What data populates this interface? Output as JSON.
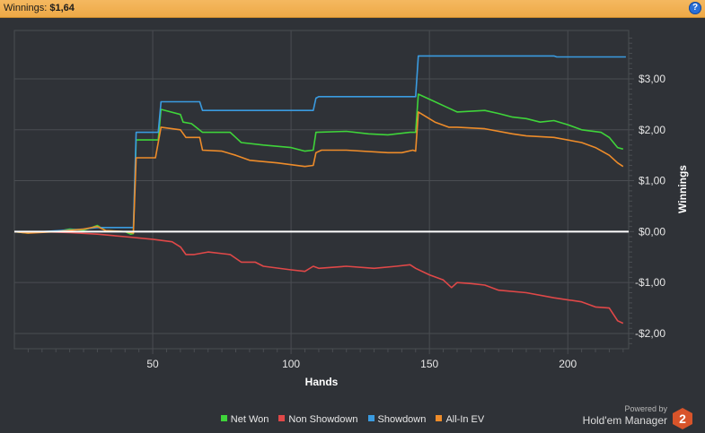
{
  "header": {
    "title_label": "Winnings:",
    "title_value": "$1,64",
    "help_icon": "question-circle-icon"
  },
  "brand": {
    "powered_by": "Powered by",
    "name": "Hold'em Manager",
    "logo_text": "2"
  },
  "colors": {
    "background": "#2f3237",
    "grid": "#4a4d52",
    "zero_line": "#ffffff",
    "net_won": "#3fd43a",
    "non_showdown": "#e04848",
    "showdown": "#3a9be0",
    "all_in_ev": "#ee8c2a"
  },
  "chart_data": {
    "type": "line",
    "xlabel": "Hands",
    "ylabel": "Winnings",
    "xlim": [
      0,
      222
    ],
    "ylim": [
      -2.3,
      3.95
    ],
    "x_ticks": [
      50,
      100,
      150,
      200
    ],
    "x_tick_labels": [
      "50",
      "100",
      "150",
      "200"
    ],
    "y_ticks": [
      3,
      2,
      1,
      0,
      -1,
      -2
    ],
    "y_tick_labels": [
      "$3,00",
      "$2,00",
      "$1,00",
      "$0,00",
      "-$1,00",
      "-$2,00"
    ],
    "grid": true,
    "legend_position": "bottom",
    "series": [
      {
        "name": "Net Won",
        "color_key": "net_won",
        "points": [
          [
            0,
            0
          ],
          [
            5,
            -0.03
          ],
          [
            8,
            0
          ],
          [
            15,
            0
          ],
          [
            20,
            0.05
          ],
          [
            25,
            0.03
          ],
          [
            28,
            0.08
          ],
          [
            30,
            0.12
          ],
          [
            33,
            0.02
          ],
          [
            40,
            0
          ],
          [
            42,
            -0.05
          ],
          [
            43,
            -0.04
          ],
          [
            44,
            1.8
          ],
          [
            52,
            1.8
          ],
          [
            53,
            2.4
          ],
          [
            60,
            2.3
          ],
          [
            61,
            2.15
          ],
          [
            64,
            2.12
          ],
          [
            68,
            1.95
          ],
          [
            78,
            1.95
          ],
          [
            80,
            1.85
          ],
          [
            82,
            1.75
          ],
          [
            90,
            1.7
          ],
          [
            100,
            1.65
          ],
          [
            105,
            1.58
          ],
          [
            108,
            1.6
          ],
          [
            109,
            1.95
          ],
          [
            120,
            1.97
          ],
          [
            128,
            1.92
          ],
          [
            135,
            1.9
          ],
          [
            143,
            1.95
          ],
          [
            145,
            1.95
          ],
          [
            146,
            2.7
          ],
          [
            152,
            2.55
          ],
          [
            156,
            2.45
          ],
          [
            160,
            2.35
          ],
          [
            170,
            2.38
          ],
          [
            175,
            2.32
          ],
          [
            180,
            2.25
          ],
          [
            185,
            2.22
          ],
          [
            190,
            2.15
          ],
          [
            195,
            2.18
          ],
          [
            200,
            2.1
          ],
          [
            205,
            2.0
          ],
          [
            212,
            1.95
          ],
          [
            215,
            1.85
          ],
          [
            218,
            1.65
          ],
          [
            220,
            1.62
          ]
        ]
      },
      {
        "name": "Non Showdown",
        "color_key": "non_showdown",
        "points": [
          [
            0,
            0
          ],
          [
            10,
            0
          ],
          [
            20,
            -0.02
          ],
          [
            30,
            -0.05
          ],
          [
            40,
            -0.1
          ],
          [
            50,
            -0.15
          ],
          [
            57,
            -0.2
          ],
          [
            60,
            -0.3
          ],
          [
            62,
            -0.45
          ],
          [
            65,
            -0.45
          ],
          [
            70,
            -0.4
          ],
          [
            78,
            -0.45
          ],
          [
            82,
            -0.6
          ],
          [
            87,
            -0.6
          ],
          [
            90,
            -0.68
          ],
          [
            100,
            -0.75
          ],
          [
            105,
            -0.78
          ],
          [
            108,
            -0.68
          ],
          [
            110,
            -0.72
          ],
          [
            120,
            -0.68
          ],
          [
            130,
            -0.72
          ],
          [
            138,
            -0.68
          ],
          [
            143,
            -0.65
          ],
          [
            145,
            -0.72
          ],
          [
            150,
            -0.85
          ],
          [
            155,
            -0.95
          ],
          [
            158,
            -1.1
          ],
          [
            160,
            -1.0
          ],
          [
            165,
            -1.02
          ],
          [
            170,
            -1.05
          ],
          [
            175,
            -1.15
          ],
          [
            185,
            -1.2
          ],
          [
            195,
            -1.3
          ],
          [
            205,
            -1.38
          ],
          [
            210,
            -1.48
          ],
          [
            215,
            -1.5
          ],
          [
            218,
            -1.75
          ],
          [
            220,
            -1.8
          ]
        ]
      },
      {
        "name": "Showdown",
        "color_key": "showdown",
        "points": [
          [
            0,
            0
          ],
          [
            10,
            0
          ],
          [
            25,
            0.05
          ],
          [
            30,
            0.08
          ],
          [
            43,
            0.08
          ],
          [
            44,
            1.95
          ],
          [
            52,
            1.95
          ],
          [
            53,
            2.55
          ],
          [
            67,
            2.55
          ],
          [
            68,
            2.38
          ],
          [
            108,
            2.38
          ],
          [
            109,
            2.62
          ],
          [
            110,
            2.65
          ],
          [
            145,
            2.65
          ],
          [
            146,
            3.45
          ],
          [
            195,
            3.45
          ],
          [
            196,
            3.43
          ],
          [
            221,
            3.43
          ]
        ]
      },
      {
        "name": "All-In EV",
        "color_key": "all_in_ev",
        "points": [
          [
            0,
            0
          ],
          [
            5,
            -0.03
          ],
          [
            15,
            0
          ],
          [
            25,
            0.05
          ],
          [
            30,
            0.1
          ],
          [
            33,
            0.02
          ],
          [
            40,
            0
          ],
          [
            43,
            -0.03
          ],
          [
            44,
            1.45
          ],
          [
            51,
            1.45
          ],
          [
            52,
            1.75
          ],
          [
            53,
            2.05
          ],
          [
            60,
            2.0
          ],
          [
            62,
            1.85
          ],
          [
            67,
            1.85
          ],
          [
            68,
            1.6
          ],
          [
            75,
            1.58
          ],
          [
            80,
            1.5
          ],
          [
            85,
            1.4
          ],
          [
            95,
            1.35
          ],
          [
            105,
            1.28
          ],
          [
            108,
            1.3
          ],
          [
            109,
            1.55
          ],
          [
            111,
            1.6
          ],
          [
            120,
            1.6
          ],
          [
            135,
            1.55
          ],
          [
            140,
            1.55
          ],
          [
            144,
            1.6
          ],
          [
            145,
            1.58
          ],
          [
            146,
            2.35
          ],
          [
            152,
            2.15
          ],
          [
            157,
            2.05
          ],
          [
            160,
            2.05
          ],
          [
            170,
            2.02
          ],
          [
            180,
            1.92
          ],
          [
            185,
            1.88
          ],
          [
            195,
            1.85
          ],
          [
            205,
            1.75
          ],
          [
            210,
            1.65
          ],
          [
            215,
            1.5
          ],
          [
            218,
            1.35
          ],
          [
            220,
            1.28
          ]
        ]
      }
    ]
  }
}
